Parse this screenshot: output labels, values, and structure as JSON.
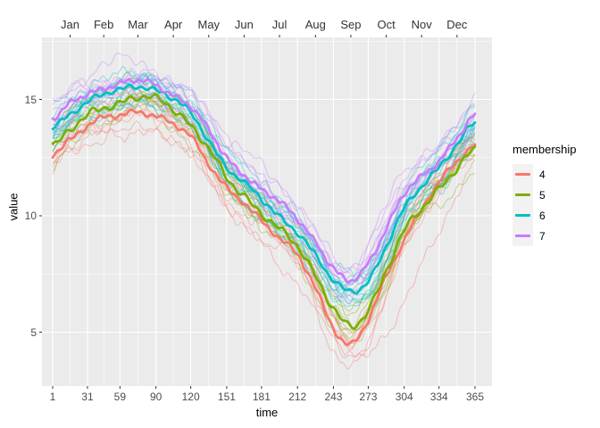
{
  "figure": {
    "background": "#FFFFFF",
    "panel_background": "#EBEBEB",
    "gridline_color": "#FFFFFF",
    "tick_color": "#333333",
    "axis_text_color": "#4D4D4D",
    "month_text_color": "#333333"
  },
  "chart_data": {
    "type": "line",
    "title": "",
    "xlabel": "time",
    "ylabel": "value",
    "legend_title": "membership",
    "legend_position": "right",
    "grid": true,
    "x_domain": [
      1,
      365
    ],
    "y_limits": [
      2.7,
      17.7
    ],
    "x_ticks": [
      1,
      31,
      59,
      90,
      120,
      151,
      181,
      212,
      243,
      273,
      304,
      334,
      365
    ],
    "y_ticks": [
      5,
      10,
      15
    ],
    "y_minor_ticks": [
      7.5,
      12.5,
      17.5
    ],
    "top_axis_months": [
      "Jan",
      "Feb",
      "Mar",
      "Apr",
      "May",
      "Jun",
      "Jul",
      "Aug",
      "Sep",
      "Oct",
      "Nov",
      "Dec"
    ],
    "month_boundary_days": [
      1,
      31,
      59,
      90,
      120,
      151,
      181,
      212,
      243,
      273,
      304,
      334,
      365
    ],
    "description": "Spaghetti plot of yearly seasonal curves (many thin member curves per cluster plus one thick cluster-mean curve), colored by cluster membership. Peak in Feb-Mar (~14.5-16), trough in Sep (~4.5-7.5).",
    "sample_days": [
      1,
      16,
      31,
      45,
      59,
      74,
      90,
      105,
      120,
      135,
      151,
      166,
      181,
      196,
      212,
      227,
      243,
      258,
      273,
      288,
      304,
      319,
      334,
      349,
      365
    ],
    "series": [
      {
        "label": "4",
        "color": "#F8766D",
        "member_count": 8,
        "spread": 0.65,
        "mean": [
          12.6,
          13.3,
          13.9,
          14.2,
          14.3,
          14.5,
          14.3,
          13.9,
          13.4,
          12.3,
          11.2,
          10.5,
          9.8,
          9.1,
          8.3,
          6.9,
          5.2,
          4.5,
          5.5,
          7.3,
          9.0,
          10.3,
          11.4,
          12.3,
          13.1
        ],
        "outlier": [
          12.1,
          12.7,
          13.2,
          13.5,
          13.6,
          13.8,
          13.6,
          13.2,
          12.6,
          11.5,
          10.3,
          9.6,
          8.9,
          8.1,
          7.2,
          5.7,
          4.0,
          3.5,
          3.9,
          5.0,
          6.5,
          8.0,
          9.4,
          10.8,
          11.9
        ]
      },
      {
        "label": "5",
        "color": "#7CAE00",
        "member_count": 7,
        "spread": 0.6,
        "mean": [
          13.1,
          13.7,
          14.3,
          14.6,
          14.9,
          15.1,
          15.0,
          14.6,
          13.9,
          12.9,
          11.6,
          10.9,
          10.1,
          9.4,
          8.7,
          7.5,
          6.0,
          5.2,
          6.0,
          7.6,
          9.3,
          10.3,
          11.2,
          12.0,
          12.8
        ]
      },
      {
        "label": "6",
        "color": "#00BFC4",
        "member_count": 12,
        "spread": 0.8,
        "mean": [
          13.8,
          14.4,
          14.9,
          15.2,
          15.4,
          15.6,
          15.4,
          15.0,
          14.4,
          13.3,
          12.1,
          11.4,
          10.7,
          10.0,
          9.3,
          8.3,
          7.2,
          6.8,
          7.2,
          8.6,
          10.3,
          11.3,
          12.1,
          13.0,
          14.0
        ]
      },
      {
        "label": "7",
        "color": "#C77CFF",
        "member_count": 8,
        "spread": 0.7,
        "mean": [
          14.2,
          14.8,
          15.2,
          15.5,
          15.7,
          15.8,
          15.6,
          15.2,
          14.7,
          13.7,
          12.5,
          11.8,
          11.1,
          10.6,
          9.9,
          8.9,
          7.7,
          7.2,
          8.0,
          9.4,
          10.9,
          11.7,
          12.4,
          13.3,
          14.3
        ]
      }
    ]
  }
}
